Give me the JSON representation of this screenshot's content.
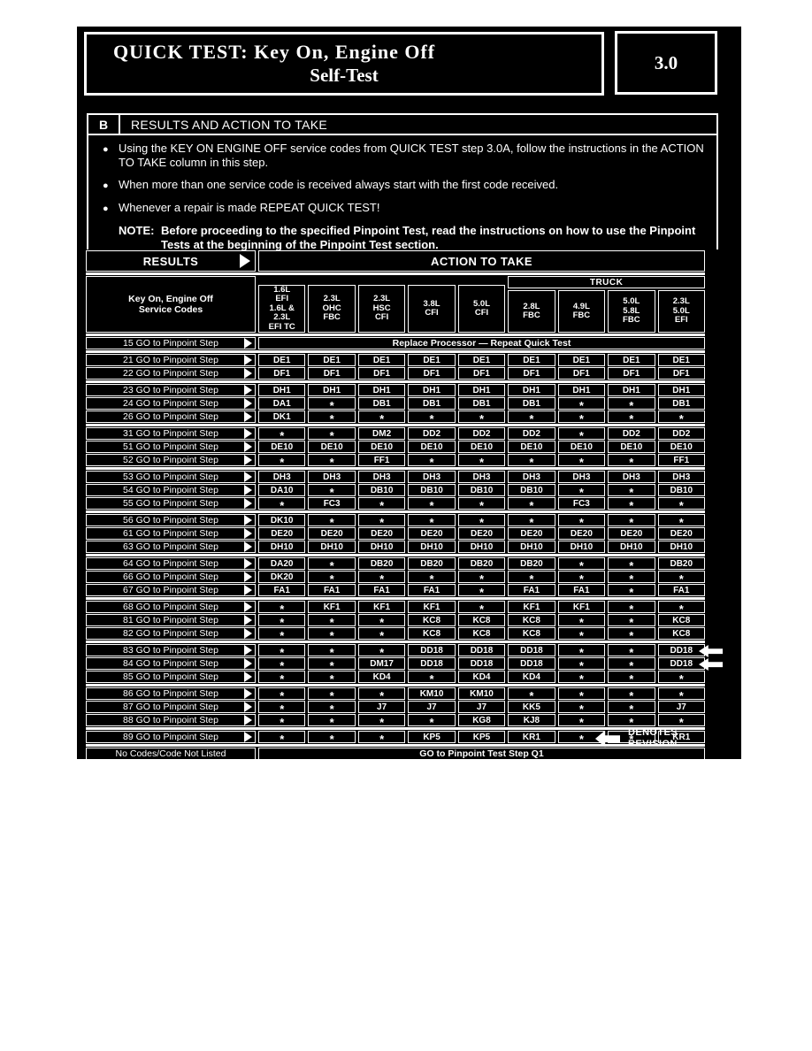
{
  "page": {
    "title_line1": "QUICK TEST: Key On, Engine Off",
    "title_line2": "Self-Test",
    "section_number": "3.0",
    "section_letter": "B",
    "section_title": "RESULTS AND ACTION TO TAKE"
  },
  "instructions": {
    "bullet_icon": "●",
    "bullets": [
      "Using the KEY ON ENGINE OFF service codes from QUICK TEST step 3.0A, follow the instructions in the ACTION TO TAKE column in this step.",
      "When more than one service code is received always start with the first code received.",
      "Whenever a repair is made REPEAT QUICK TEST!"
    ],
    "note_label": "NOTE:",
    "note_text": "Before proceeding to the specified Pinpoint Test, read the instructions on how to use the Pinpoint Tests at the beginning of the Pinpoint Test section."
  },
  "table": {
    "results_header": "RESULTS",
    "action_header": "ACTION TO TAKE",
    "codes_header_line1": "Key On, Engine Off",
    "codes_header_line2": "Service Codes",
    "truck_label": "TRUCK",
    "row_label": "GO to Pinpoint Step",
    "engine_columns": [
      {
        "lines": [
          "1.6L",
          "EFI",
          "1.6L &",
          "2.3L",
          "EFI TC"
        ],
        "truck": false
      },
      {
        "lines": [
          "2.3L",
          "OHC",
          "FBC"
        ],
        "truck": false
      },
      {
        "lines": [
          "2.3L",
          "HSC",
          "CFI"
        ],
        "truck": false
      },
      {
        "lines": [
          "3.8L",
          "CFI"
        ],
        "truck": false
      },
      {
        "lines": [
          "5.0L",
          "CFI"
        ],
        "truck": false
      },
      {
        "lines": [
          "2.8L",
          "FBC"
        ],
        "truck": true
      },
      {
        "lines": [
          "4.9L",
          "FBC"
        ],
        "truck": true
      },
      {
        "lines": [
          "5.0L",
          "5.8L",
          "FBC"
        ],
        "truck": true
      },
      {
        "lines": [
          "2.3L",
          "5.0L",
          "EFI"
        ],
        "truck": true
      }
    ],
    "groups": [
      {
        "rows": [
          {
            "code": "15",
            "span": "Replace Processor — Repeat Quick Test"
          }
        ]
      },
      {
        "rows": [
          {
            "code": "21",
            "cells": [
              "DE1",
              "DE1",
              "DE1",
              "DE1",
              "DE1",
              "DE1",
              "DE1",
              "DE1",
              "DE1"
            ]
          },
          {
            "code": "22",
            "cells": [
              "DF1",
              "DF1",
              "DF1",
              "DF1",
              "DF1",
              "DF1",
              "DF1",
              "DF1",
              "DF1"
            ]
          }
        ]
      },
      {
        "rows": [
          {
            "code": "23",
            "cells": [
              "DH1",
              "DH1",
              "DH1",
              "DH1",
              "DH1",
              "DH1",
              "DH1",
              "DH1",
              "DH1"
            ]
          },
          {
            "code": "24",
            "cells": [
              "DA1",
              "*",
              "DB1",
              "DB1",
              "DB1",
              "DB1",
              "*",
              "*",
              "DB1"
            ]
          },
          {
            "code": "26",
            "cells": [
              "DK1",
              "*",
              "*",
              "*",
              "*",
              "*",
              "*",
              "*",
              "*"
            ]
          }
        ]
      },
      {
        "rows": [
          {
            "code": "31",
            "cells": [
              "*",
              "*",
              "DM2",
              "DD2",
              "DD2",
              "DD2",
              "*",
              "DD2",
              "DD2"
            ]
          },
          {
            "code": "51",
            "cells": [
              "DE10",
              "DE10",
              "DE10",
              "DE10",
              "DE10",
              "DE10",
              "DE10",
              "DE10",
              "DE10"
            ]
          },
          {
            "code": "52",
            "cells": [
              "*",
              "*",
              "FF1",
              "*",
              "*",
              "*",
              "*",
              "*",
              "FF1"
            ]
          }
        ]
      },
      {
        "rows": [
          {
            "code": "53",
            "cells": [
              "DH3",
              "DH3",
              "DH3",
              "DH3",
              "DH3",
              "DH3",
              "DH3",
              "DH3",
              "DH3"
            ]
          },
          {
            "code": "54",
            "cells": [
              "DA10",
              "*",
              "DB10",
              "DB10",
              "DB10",
              "DB10",
              "*",
              "*",
              "DB10"
            ]
          },
          {
            "code": "55",
            "cells": [
              "*",
              "FC3",
              "*",
              "*",
              "*",
              "*",
              "FC3",
              "*",
              "*"
            ]
          }
        ]
      },
      {
        "rows": [
          {
            "code": "56",
            "cells": [
              "DK10",
              "*",
              "*",
              "*",
              "*",
              "*",
              "*",
              "*",
              "*"
            ]
          },
          {
            "code": "61",
            "cells": [
              "DE20",
              "DE20",
              "DE20",
              "DE20",
              "DE20",
              "DE20",
              "DE20",
              "DE20",
              "DE20"
            ]
          },
          {
            "code": "63",
            "cells": [
              "DH10",
              "DH10",
              "DH10",
              "DH10",
              "DH10",
              "DH10",
              "DH10",
              "DH10",
              "DH10"
            ]
          }
        ]
      },
      {
        "rows": [
          {
            "code": "64",
            "cells": [
              "DA20",
              "*",
              "DB20",
              "DB20",
              "DB20",
              "DB20",
              "*",
              "*",
              "DB20"
            ]
          },
          {
            "code": "66",
            "cells": [
              "DK20",
              "*",
              "*",
              "*",
              "*",
              "*",
              "*",
              "*",
              "*"
            ]
          },
          {
            "code": "67",
            "cells": [
              "FA1",
              "FA1",
              "FA1",
              "FA1",
              "*",
              "FA1",
              "FA1",
              "*",
              "FA1"
            ]
          }
        ]
      },
      {
        "rows": [
          {
            "code": "68",
            "cells": [
              "*",
              "KF1",
              "KF1",
              "KF1",
              "*",
              "KF1",
              "KF1",
              "*",
              "*"
            ]
          },
          {
            "code": "81",
            "cells": [
              "*",
              "*",
              "*",
              "KC8",
              "KC8",
              "KC8",
              "*",
              "*",
              "KC8"
            ]
          },
          {
            "code": "82",
            "cells": [
              "*",
              "*",
              "*",
              "KC8",
              "KC8",
              "KC8",
              "*",
              "*",
              "KC8"
            ]
          }
        ]
      },
      {
        "rows": [
          {
            "code": "83",
            "cells": [
              "*",
              "*",
              "*",
              "DD18",
              "DD18",
              "DD18",
              "*",
              "*",
              "DD18"
            ],
            "revision": true
          },
          {
            "code": "84",
            "cells": [
              "*",
              "*",
              "DM17",
              "DD18",
              "DD18",
              "DD18",
              "*",
              "*",
              "DD18"
            ],
            "revision": true
          },
          {
            "code": "85",
            "cells": [
              "*",
              "*",
              "KD4",
              "*",
              "KD4",
              "KD4",
              "*",
              "*",
              "*"
            ]
          }
        ]
      },
      {
        "rows": [
          {
            "code": "86",
            "cells": [
              "*",
              "*",
              "*",
              "KM10",
              "KM10",
              "*",
              "*",
              "*",
              "*"
            ]
          },
          {
            "code": "87",
            "cells": [
              "*",
              "*",
              "J7",
              "J7",
              "J7",
              "KK5",
              "*",
              "*",
              "J7"
            ]
          },
          {
            "code": "88",
            "cells": [
              "*",
              "*",
              "*",
              "*",
              "KG8",
              "KJ8",
              "*",
              "*",
              "*"
            ]
          }
        ]
      },
      {
        "rows": [
          {
            "code": "89",
            "cells": [
              "*",
              "*",
              "*",
              "KP5",
              "KP5",
              "KR1",
              "*",
              "*",
              "KR1"
            ]
          }
        ]
      },
      {
        "rows": [
          {
            "label": "No Codes/Code Not Listed",
            "span": "GO to Pinpoint Test Step Q1"
          }
        ]
      }
    ]
  },
  "legend": {
    "line1": "DENOTES",
    "line2": "REVISION"
  },
  "colors": {
    "background": "#000000",
    "ink": "#ffffff"
  }
}
